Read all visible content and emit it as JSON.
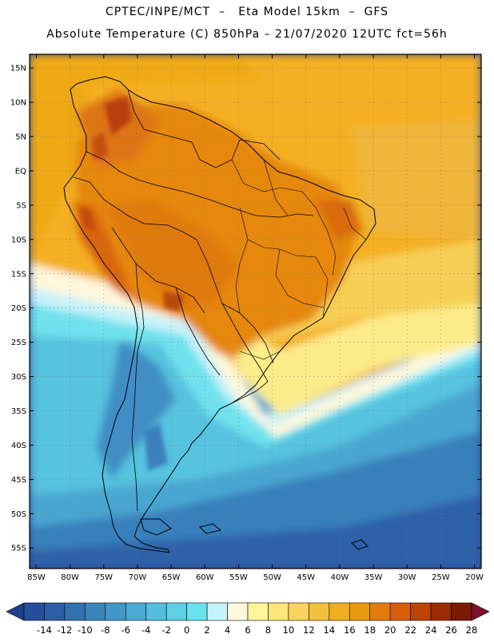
{
  "header": {
    "line1": "CPTEC/INPE/MCT  –   Eta Model 15km  –  GFS",
    "line2": "Absolute Temperature (C) 850hPa – 21/07/2020 12UTC fct=56h"
  },
  "map": {
    "lon_range": [
      -86,
      -19
    ],
    "lat_range": [
      -58,
      17
    ],
    "lat_ticks": [
      {
        "value": 15,
        "label": "15N"
      },
      {
        "value": 10,
        "label": "10N"
      },
      {
        "value": 5,
        "label": "5N"
      },
      {
        "value": 0,
        "label": "EQ"
      },
      {
        "value": -5,
        "label": "5S"
      },
      {
        "value": -10,
        "label": "10S"
      },
      {
        "value": -15,
        "label": "15S"
      },
      {
        "value": -20,
        "label": "20S"
      },
      {
        "value": -25,
        "label": "25S"
      },
      {
        "value": -30,
        "label": "30S"
      },
      {
        "value": -35,
        "label": "35S"
      },
      {
        "value": -40,
        "label": "40S"
      },
      {
        "value": -45,
        "label": "45S"
      },
      {
        "value": -50,
        "label": "50S"
      },
      {
        "value": -55,
        "label": "55S"
      }
    ],
    "lon_ticks": [
      {
        "value": -85,
        "label": "85W"
      },
      {
        "value": -80,
        "label": "80W"
      },
      {
        "value": -75,
        "label": "75W"
      },
      {
        "value": -70,
        "label": "70W"
      },
      {
        "value": -65,
        "label": "65W"
      },
      {
        "value": -60,
        "label": "60W"
      },
      {
        "value": -55,
        "label": "55W"
      },
      {
        "value": -50,
        "label": "50W"
      },
      {
        "value": -45,
        "label": "45W"
      },
      {
        "value": -40,
        "label": "40W"
      },
      {
        "value": -35,
        "label": "35W"
      },
      {
        "value": -30,
        "label": "30W"
      },
      {
        "value": -25,
        "label": "25W"
      },
      {
        "value": -20,
        "label": "20W"
      }
    ],
    "grid": true
  },
  "colorbar": {
    "labels": [
      "-14",
      "-12",
      "-10",
      "-8",
      "-6",
      "-4",
      "-2",
      "0",
      "2",
      "4",
      "6",
      "8",
      "10",
      "12",
      "14",
      "16",
      "18",
      "20",
      "22",
      "24",
      "26",
      "28"
    ],
    "colors": [
      "#1f3f8f",
      "#264f9b",
      "#2c5fa6",
      "#3371b0",
      "#3b85bb",
      "#4298c6",
      "#4aabd2",
      "#53bedd",
      "#5dd0e6",
      "#69e2ee",
      "#c8f2fa",
      "#fff8dc",
      "#fff59a",
      "#fde777",
      "#f9d460",
      "#f4c13f",
      "#f0ae21",
      "#e99a10",
      "#e27c0c",
      "#d85e08",
      "#bd4306",
      "#9b2c04",
      "#7a1a02",
      "#801030"
    ]
  }
}
